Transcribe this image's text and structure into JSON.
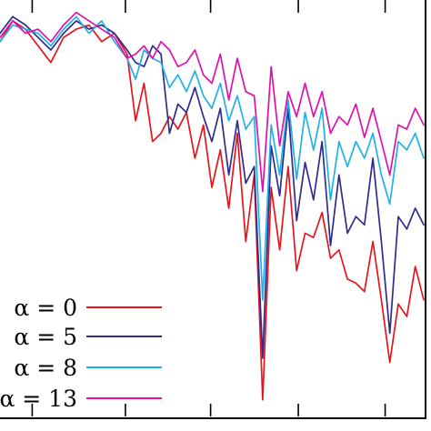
{
  "chart_data": {
    "type": "line",
    "title": "",
    "xlabel": "",
    "ylabel": "",
    "xlim": [
      0,
      100
    ],
    "ylim": [
      0,
      100
    ],
    "grid": false,
    "legend_position": "bottom-left",
    "x_ticks": [
      7.6,
      29.6,
      49.7,
      70.4,
      90.9
    ],
    "y_ticks": [],
    "x": [
      0,
      3,
      6,
      9,
      12,
      15,
      18,
      21,
      24,
      27,
      30,
      32,
      34,
      36,
      38,
      40,
      42,
      44,
      46,
      48,
      50,
      52,
      54,
      56,
      58,
      60,
      62,
      64,
      66,
      68,
      70,
      72,
      74,
      76,
      78,
      80,
      82,
      84,
      86,
      88,
      90,
      92,
      94,
      96,
      98,
      100
    ],
    "series": [
      {
        "name": "α = 0",
        "color": "#e8141c",
        "values": [
          90,
          95,
          93,
          89,
          85,
          91,
          93,
          94,
          90,
          92,
          87,
          71,
          80,
          66,
          68,
          72,
          69,
          73,
          62,
          70,
          55,
          64,
          50,
          68,
          42,
          58,
          4,
          55,
          40,
          60,
          35,
          44,
          43,
          49,
          38,
          40,
          33,
          32,
          30,
          42,
          28,
          13,
          27,
          24,
          36,
          28
        ]
      },
      {
        "name": "α = 5",
        "color": "#2e2c8e",
        "values": [
          92,
          96,
          94,
          91,
          88,
          92,
          95,
          93,
          94,
          92,
          88,
          85,
          84,
          89,
          87,
          68,
          75,
          73,
          79,
          72,
          66,
          74,
          58,
          71,
          56,
          60,
          14,
          65,
          53,
          74,
          47,
          61,
          52,
          66,
          41,
          58,
          44,
          48,
          46,
          62,
          42,
          20,
          48,
          45,
          50,
          46
        ]
      },
      {
        "name": "α = 8",
        "color": "#1fb2e8",
        "values": [
          90,
          94,
          93,
          92,
          89,
          93,
          96,
          92,
          95,
          90,
          86,
          81,
          88,
          86,
          85,
          79,
          82,
          78,
          83,
          77,
          74,
          80,
          71,
          77,
          69,
          72,
          28,
          70,
          58,
          76,
          57,
          73,
          64,
          74,
          52,
          66,
          60,
          66,
          62,
          68,
          58,
          51,
          66,
          64,
          68,
          62
        ]
      },
      {
        "name": "α = 13",
        "color": "#dd11ad",
        "values": [
          91,
          95,
          92,
          93,
          90,
          94,
          97,
          95,
          93,
          91,
          86,
          87,
          89,
          86,
          90,
          88,
          84,
          85,
          88,
          82,
          80,
          87,
          76,
          86,
          78,
          77,
          54,
          84,
          65,
          78,
          72,
          80,
          72,
          78,
          68,
          72,
          70,
          75,
          67,
          74,
          66,
          58,
          70,
          69,
          74,
          70
        ]
      }
    ]
  }
}
